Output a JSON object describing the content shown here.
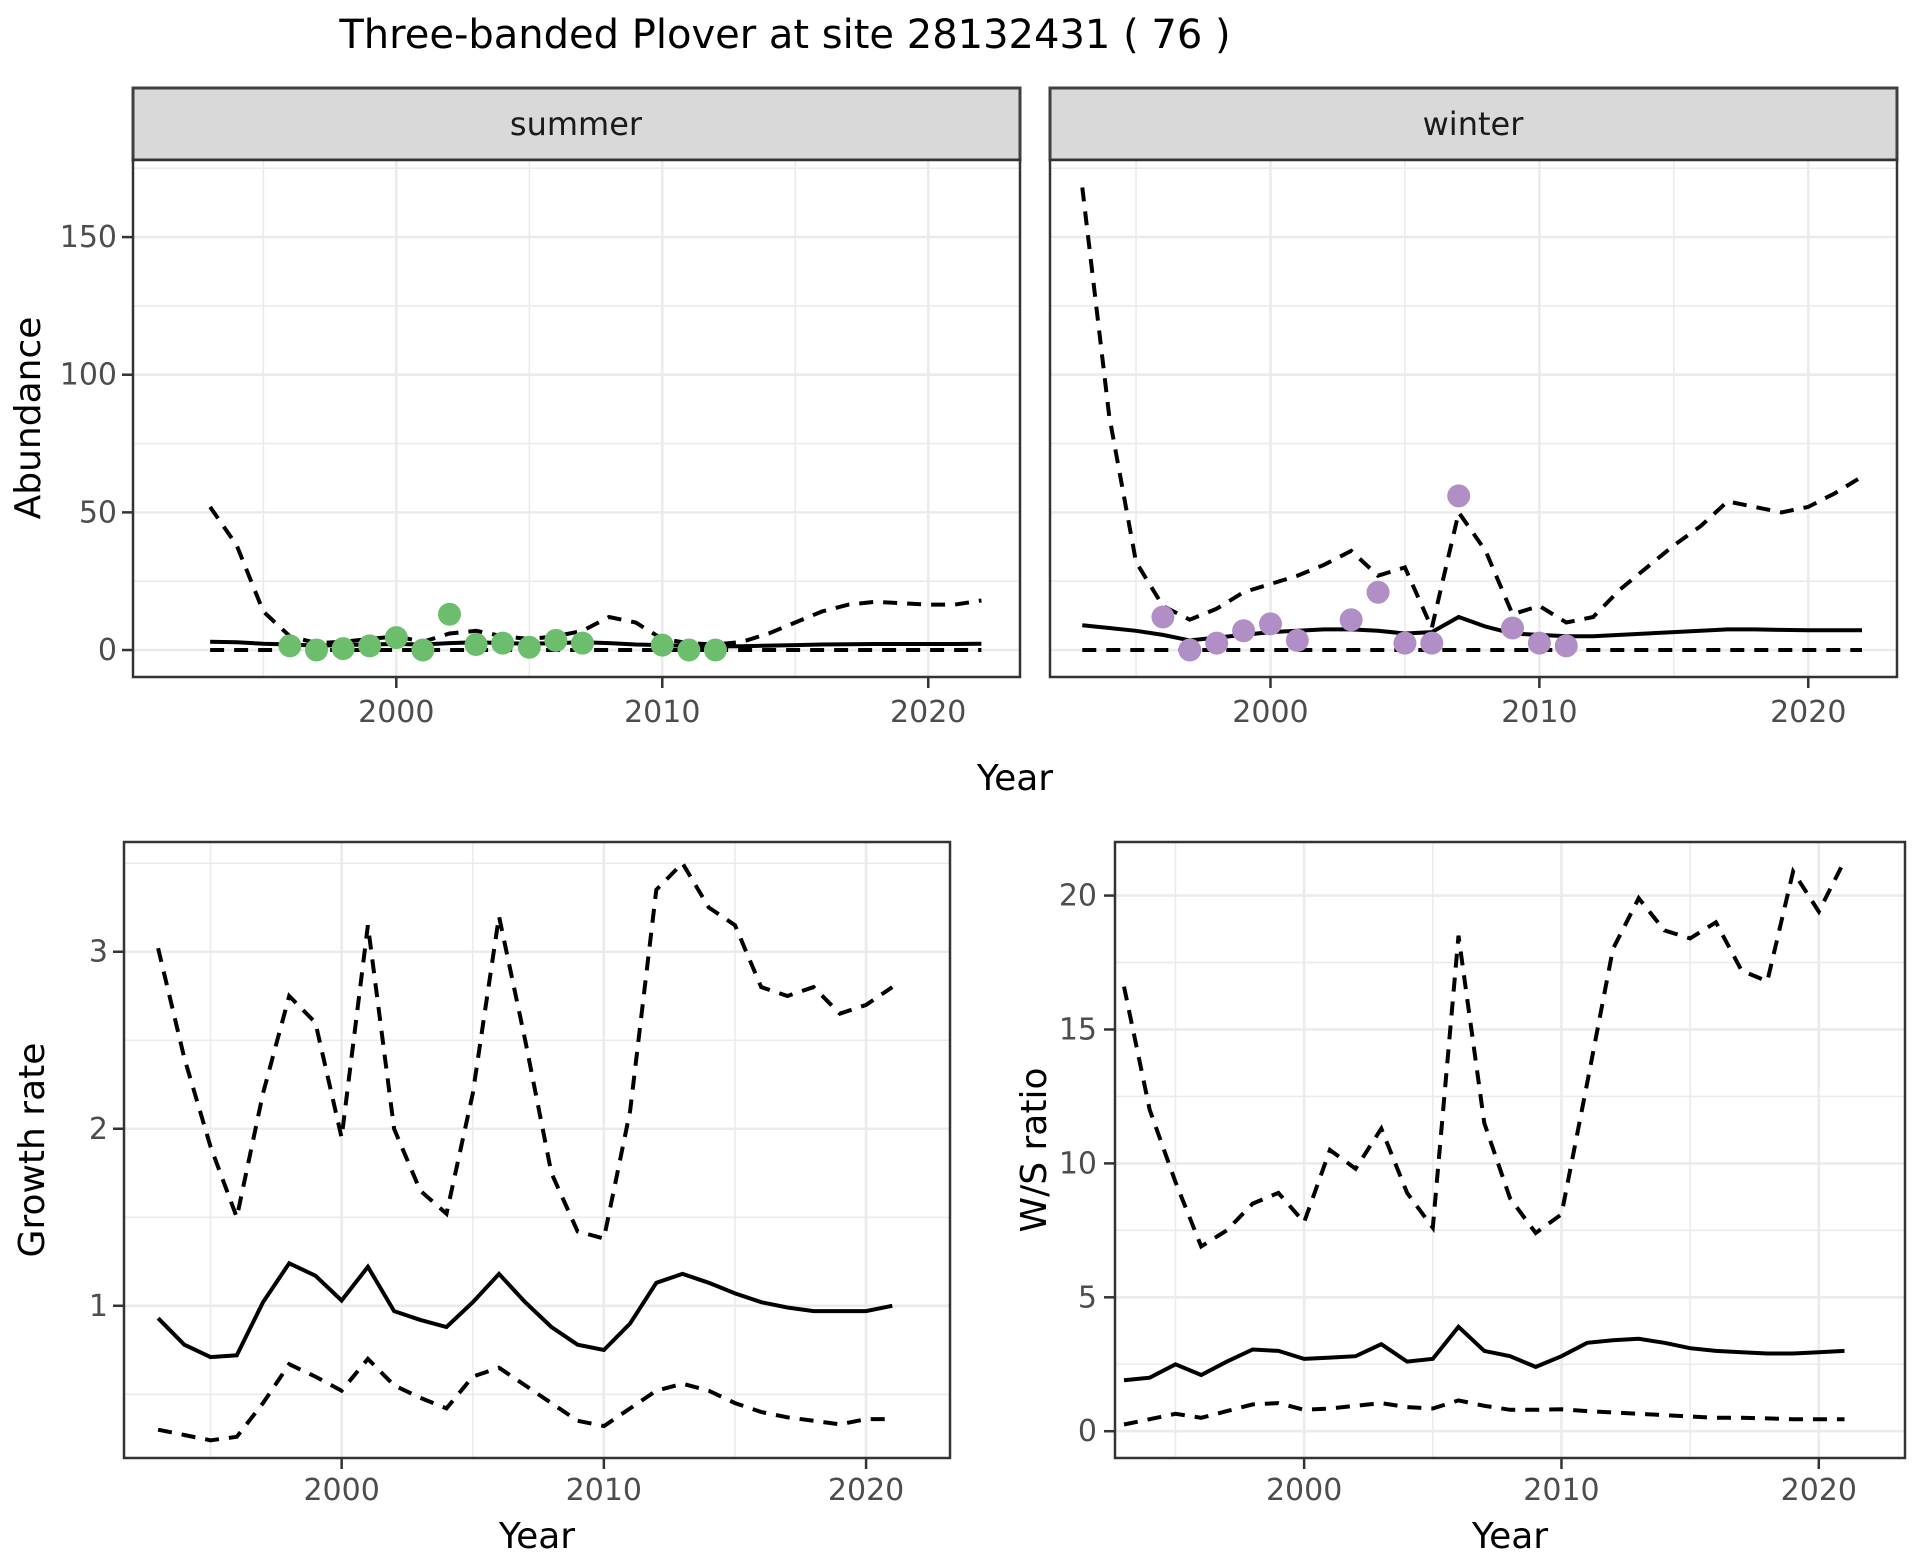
{
  "title": "Three-banded Plover at site 28132431 ( 76 )",
  "axis_titles": {
    "top_y": "Abundance",
    "top_x": "Year",
    "growth_y": "Growth rate",
    "growth_x": "Year",
    "ws_y": "W/S ratio",
    "ws_x": "Year"
  },
  "colors": {
    "summer_points": "#6dbe6c",
    "winter_points": "#b18fc6",
    "line": "#000000",
    "grid_line": "#ebebeb",
    "strip_bg": "#d9d9d9",
    "strip_border": "#404040",
    "panel_border": "#333333",
    "tick_label": "#4d4d4d",
    "background": "#ffffff"
  },
  "chart_data": [
    {
      "id": "summer",
      "type": "line",
      "facet_label": "summer",
      "ylabel": "Abundance",
      "xlabel": "Year",
      "xlim": [
        1990.1,
        2023.45
      ],
      "ylim": [
        -9.8,
        178
      ],
      "x_ticks": [
        2000,
        2010,
        2020
      ],
      "x_minor": [
        1995,
        2005,
        2015
      ],
      "y_ticks": [
        0,
        50,
        100,
        150
      ],
      "y_minor": [
        25,
        75,
        125,
        175
      ],
      "show_y_labels": true,
      "years": [
        1993,
        1994,
        1995,
        1996,
        1997,
        1998,
        1999,
        2000,
        2001,
        2002,
        2003,
        2004,
        2005,
        2006,
        2007,
        2008,
        2009,
        2010,
        2011,
        2012,
        2013,
        2014,
        2015,
        2016,
        2017,
        2018,
        2019,
        2020,
        2021,
        2022
      ],
      "series": [
        {
          "name": "upper_ci",
          "style": "dashed",
          "values": [
            52,
            38,
            14,
            5,
            2.5,
            3,
            4,
            5,
            3,
            6,
            7,
            5,
            4,
            5,
            7,
            12,
            10,
            4,
            2.5,
            2,
            3,
            6,
            10,
            14,
            16.5,
            17.5,
            17,
            16.5,
            16.5,
            18
          ]
        },
        {
          "name": "median",
          "style": "solid",
          "values": [
            3,
            2.8,
            2.3,
            2,
            1.6,
            1.8,
            2,
            2.2,
            2,
            2.5,
            2.8,
            2.5,
            2.3,
            2.5,
            2.8,
            2.5,
            2,
            1.8,
            1.5,
            1.3,
            1.4,
            1.6,
            1.8,
            2,
            2.1,
            2.2,
            2.2,
            2.2,
            2.2,
            2.3
          ]
        },
        {
          "name": "lower_ci",
          "style": "dashed",
          "values": [
            0,
            0,
            0,
            0,
            0,
            0,
            0,
            0,
            0,
            0,
            0,
            0,
            0,
            0,
            0,
            0,
            0,
            0,
            0,
            0,
            0,
            0,
            0,
            0,
            0,
            0,
            0,
            0,
            0,
            0
          ]
        }
      ],
      "points": {
        "name": "observed_counts",
        "color": "#6dbe6c",
        "xy": [
          [
            1996,
            1.5
          ],
          [
            1997,
            0
          ],
          [
            1998,
            0.5
          ],
          [
            1999,
            1.5
          ],
          [
            2000,
            4.5
          ],
          [
            2001,
            0
          ],
          [
            2002,
            13
          ],
          [
            2003,
            2
          ],
          [
            2004,
            2.5
          ],
          [
            2005,
            1
          ],
          [
            2006,
            3.5
          ],
          [
            2007,
            2.5
          ],
          [
            2010,
            1.8
          ],
          [
            2011,
            0
          ],
          [
            2012,
            0
          ]
        ]
      }
    },
    {
      "id": "winter",
      "type": "line",
      "facet_label": "winter",
      "ylabel": "Abundance",
      "xlabel": "Year",
      "xlim": [
        1991.8,
        2023.3
      ],
      "ylim": [
        -9.8,
        178
      ],
      "x_ticks": [
        2000,
        2010,
        2020
      ],
      "x_minor": [
        1995,
        2005,
        2015
      ],
      "y_ticks": [
        0,
        50,
        100,
        150
      ],
      "y_minor": [
        25,
        75,
        125,
        175
      ],
      "show_y_labels": false,
      "years": [
        1993,
        1994,
        1995,
        1996,
        1997,
        1998,
        1999,
        2000,
        2001,
        2002,
        2003,
        2004,
        2005,
        2006,
        2007,
        2008,
        2009,
        2010,
        2011,
        2012,
        2013,
        2014,
        2015,
        2016,
        2017,
        2018,
        2019,
        2020,
        2021,
        2022
      ],
      "series": [
        {
          "name": "upper_ci",
          "style": "dashed",
          "values": [
            168,
            85,
            32,
            16,
            11,
            15,
            21,
            24,
            27,
            31,
            36,
            27,
            30,
            8,
            50,
            36,
            13,
            16,
            10,
            12,
            22,
            30,
            38,
            45,
            54,
            52,
            50,
            52,
            57,
            63
          ]
        },
        {
          "name": "median",
          "style": "solid",
          "values": [
            9,
            8,
            7,
            5.5,
            3.5,
            4.5,
            5.5,
            6.5,
            7,
            7.5,
            7.5,
            7,
            6,
            6.5,
            12,
            8.5,
            6,
            5.5,
            5,
            5,
            5.5,
            6,
            6.5,
            7,
            7.5,
            7.5,
            7.3,
            7.2,
            7.2,
            7.2
          ]
        },
        {
          "name": "lower_ci",
          "style": "dashed",
          "values": [
            0,
            0,
            0,
            0,
            0,
            0,
            0,
            0,
            0,
            0,
            0,
            0,
            0,
            0,
            0,
            0,
            0,
            0,
            0,
            0,
            0,
            0,
            0,
            0,
            0,
            0,
            0,
            0,
            0,
            0
          ]
        }
      ],
      "points": {
        "name": "observed_counts",
        "color": "#b18fc6",
        "xy": [
          [
            1996,
            12
          ],
          [
            1997,
            0
          ],
          [
            1998,
            2.5
          ],
          [
            1999,
            7
          ],
          [
            2000,
            9.5
          ],
          [
            2001,
            3.5
          ],
          [
            2003,
            11
          ],
          [
            2004,
            21
          ],
          [
            2005,
            2.5
          ],
          [
            2006,
            2.5
          ],
          [
            2007,
            56
          ],
          [
            2009,
            8
          ],
          [
            2010,
            2.5
          ],
          [
            2011,
            1.5
          ]
        ]
      }
    },
    {
      "id": "growth",
      "type": "line",
      "facet_label": "",
      "ylabel": "Growth rate",
      "xlabel": "Year",
      "xlim": [
        1991.7,
        2023.2
      ],
      "ylim": [
        0.14,
        3.62
      ],
      "x_ticks": [
        2000,
        2010,
        2020
      ],
      "x_minor": [
        1995,
        2005,
        2015
      ],
      "y_ticks": [
        1,
        2,
        3
      ],
      "y_minor": [
        0.5,
        1.5,
        2.5,
        3.5
      ],
      "show_y_labels": true,
      "years": [
        1993,
        1994,
        1995,
        1996,
        1997,
        1998,
        1999,
        2000,
        2001,
        2002,
        2003,
        2004,
        2005,
        2006,
        2007,
        2008,
        2009,
        2010,
        2011,
        2012,
        2013,
        2014,
        2015,
        2016,
        2017,
        2018,
        2019,
        2020,
        2021
      ],
      "series": [
        {
          "name": "upper_ci",
          "style": "dashed",
          "values": [
            3.02,
            2.4,
            1.9,
            1.5,
            2.2,
            2.75,
            2.6,
            1.95,
            3.15,
            2.0,
            1.65,
            1.52,
            2.2,
            3.2,
            2.5,
            1.75,
            1.42,
            1.38,
            2.1,
            3.35,
            3.5,
            3.25,
            3.15,
            2.8,
            2.75,
            2.8,
            2.65,
            2.7,
            2.8
          ]
        },
        {
          "name": "median",
          "style": "solid",
          "values": [
            0.93,
            0.78,
            0.71,
            0.72,
            1.02,
            1.24,
            1.17,
            1.03,
            1.22,
            0.97,
            0.92,
            0.88,
            1.02,
            1.18,
            1.02,
            0.88,
            0.78,
            0.75,
            0.9,
            1.13,
            1.18,
            1.13,
            1.07,
            1.02,
            0.99,
            0.97,
            0.97,
            0.97,
            1.0
          ]
        },
        {
          "name": "lower_ci",
          "style": "dashed",
          "values": [
            0.3,
            0.27,
            0.24,
            0.26,
            0.45,
            0.67,
            0.6,
            0.52,
            0.7,
            0.55,
            0.48,
            0.42,
            0.6,
            0.65,
            0.55,
            0.45,
            0.35,
            0.32,
            0.42,
            0.52,
            0.56,
            0.52,
            0.45,
            0.4,
            0.37,
            0.35,
            0.33,
            0.36,
            0.36
          ]
        }
      ],
      "points": null
    },
    {
      "id": "ws",
      "type": "line",
      "facet_label": "",
      "ylabel": "W/S ratio",
      "xlabel": "Year",
      "xlim": [
        1992.65,
        2023.35
      ],
      "ylim": [
        -1,
        22
      ],
      "x_ticks": [
        2000,
        2010,
        2020
      ],
      "x_minor": [
        1995,
        2005,
        2015
      ],
      "y_ticks": [
        0,
        5,
        10,
        15,
        20
      ],
      "y_minor": [
        2.5,
        7.5,
        12.5,
        17.5
      ],
      "show_y_labels": true,
      "years": [
        1993,
        1994,
        1995,
        1996,
        1997,
        1998,
        1999,
        2000,
        2001,
        2002,
        2003,
        2004,
        2005,
        2006,
        2007,
        2008,
        2009,
        2010,
        2011,
        2012,
        2013,
        2014,
        2015,
        2016,
        2017,
        2018,
        2019,
        2020,
        2021
      ],
      "series": [
        {
          "name": "upper_ci",
          "style": "dashed",
          "values": [
            16.6,
            12,
            9.3,
            6.9,
            7.5,
            8.5,
            8.9,
            7.8,
            10.5,
            9.8,
            11.3,
            8.9,
            7.6,
            18.5,
            11.5,
            8.7,
            7.4,
            8.1,
            13,
            18,
            19.9,
            18.7,
            18.4,
            19,
            17.2,
            16.8,
            20.9,
            19.4,
            21.3
          ]
        },
        {
          "name": "median",
          "style": "solid",
          "values": [
            1.9,
            2.0,
            2.5,
            2.1,
            2.6,
            3.05,
            3.0,
            2.7,
            2.75,
            2.8,
            3.25,
            2.6,
            2.7,
            3.9,
            3.0,
            2.8,
            2.4,
            2.8,
            3.3,
            3.4,
            3.45,
            3.3,
            3.1,
            3.0,
            2.95,
            2.9,
            2.9,
            2.95,
            3.0
          ]
        },
        {
          "name": "lower_ci",
          "style": "dashed",
          "values": [
            0.25,
            0.45,
            0.65,
            0.5,
            0.75,
            1.0,
            1.05,
            0.8,
            0.85,
            0.95,
            1.05,
            0.9,
            0.85,
            1.15,
            0.95,
            0.8,
            0.8,
            0.82,
            0.75,
            0.7,
            0.65,
            0.6,
            0.55,
            0.5,
            0.5,
            0.48,
            0.45,
            0.45,
            0.45
          ]
        }
      ],
      "points": null
    }
  ]
}
